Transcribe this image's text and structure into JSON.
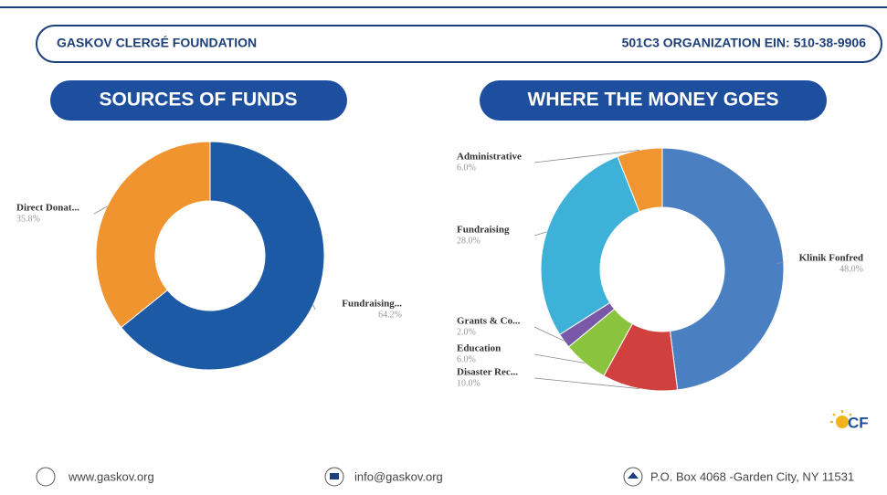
{
  "header": {
    "left": "GASKOV CLERGÉ FOUNDATION",
    "right": "501C3 ORGANIZATION  EIN: 510-38-9906"
  },
  "logo": "CF",
  "footer": {
    "website": "www.gaskov.org",
    "email": "info@gaskov.org",
    "address": "P.O. Box 4068 -Garden City, NY 11531"
  },
  "chart_data": [
    {
      "type": "donut",
      "title": "SOURCES OF FUNDS",
      "categories": [
        "Fundraising...",
        "Direct Donat..."
      ],
      "values": [
        64.2,
        35.8
      ],
      "value_labels": [
        "64.2%",
        "35.8%"
      ],
      "colors": [
        "#1d5aa5",
        "#ef942e"
      ]
    },
    {
      "type": "donut",
      "title": "WHERE THE MONEY GOES",
      "categories": [
        "Klinik Fonfred",
        "Disaster Rec...",
        "Education",
        "Grants & Co...",
        "Fundraising",
        "Administrative"
      ],
      "values": [
        48.0,
        10.0,
        6.0,
        2.0,
        28.0,
        6.0
      ],
      "value_labels": [
        "48.0%",
        "10.0%",
        "6.0%",
        "2.0%",
        "28.0%",
        "6.0%"
      ],
      "colors": [
        "#4a80c2",
        "#d0403f",
        "#8ac43f",
        "#7a58a8",
        "#3eb1d9",
        "#f0952f"
      ]
    }
  ]
}
